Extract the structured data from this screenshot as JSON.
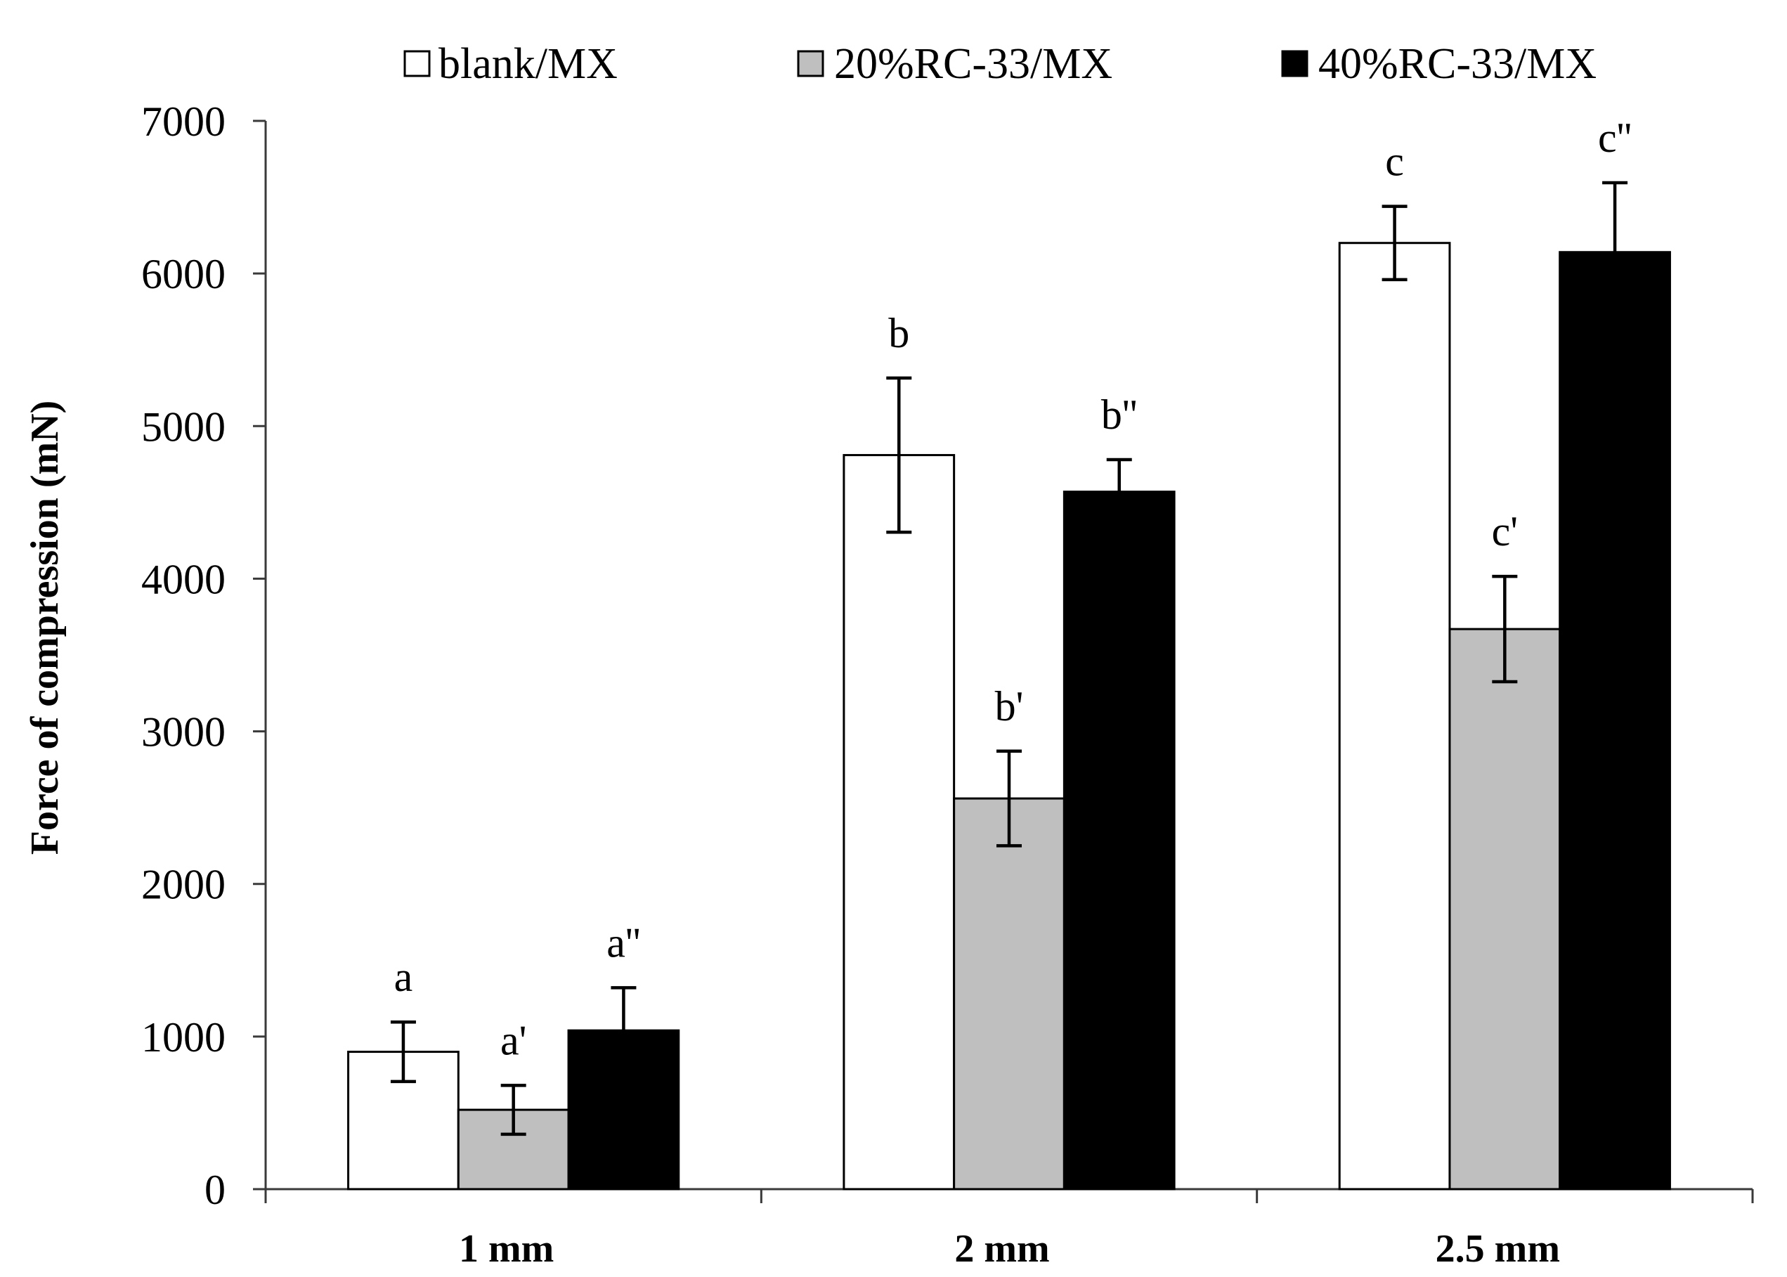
{
  "chart_data": {
    "type": "bar",
    "categories": [
      "1 mm",
      "2 mm",
      "2.5 mm"
    ],
    "ylabel": "Force of compression (mN)",
    "ylim": [
      0,
      7000
    ],
    "yticks": [
      0,
      1000,
      2000,
      3000,
      4000,
      5000,
      6000,
      7000
    ],
    "legend_position": "top",
    "series": [
      {
        "name": "blank/MX",
        "color": "#ffffff",
        "values": [
          900,
          4810,
          6200
        ],
        "errors": [
          195,
          505,
          240
        ],
        "labels": [
          "a",
          "b",
          "c"
        ]
      },
      {
        "name": "20%RC-33/MX",
        "color": "#bfbfbf",
        "values": [
          520,
          2560,
          3670
        ],
        "errors": [
          160,
          310,
          345
        ],
        "labels": [
          "a'",
          "b'",
          "c'"
        ]
      },
      {
        "name": "40%RC-33/MX",
        "color": "#000000",
        "values": [
          1040,
          4570,
          6140
        ],
        "errors": [
          280,
          210,
          455
        ],
        "labels": [
          "a''",
          "b''",
          "c''"
        ]
      }
    ]
  }
}
